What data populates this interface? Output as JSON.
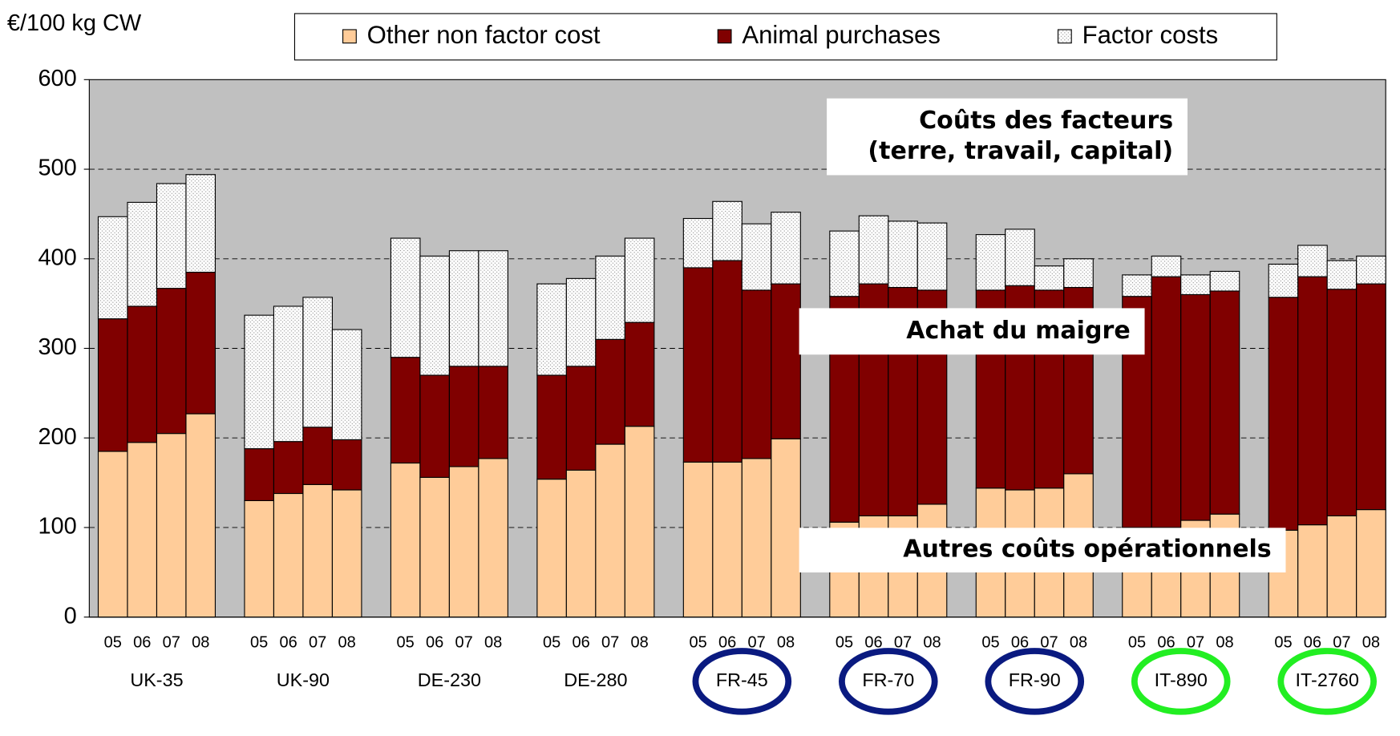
{
  "chart_data": {
    "type": "stacked_bar",
    "y_label": "€/100 kg CW",
    "groups": [
      "UK-35",
      "UK-90",
      "DE-230",
      "DE-280",
      "FR-45",
      "FR-70",
      "FR-90",
      "IT-890",
      "IT-2760"
    ],
    "categories": [
      "05",
      "06",
      "07",
      "08",
      "05",
      "06",
      "07",
      "08",
      "05",
      "06",
      "07",
      "08",
      "05",
      "06",
      "07",
      "08",
      "05",
      "06",
      "07",
      "08",
      "05",
      "06",
      "07",
      "08",
      "05",
      "06",
      "07",
      "08",
      "05",
      "06",
      "07",
      "08",
      "05",
      "06",
      "07",
      "08"
    ],
    "series": [
      {
        "name": "Other non factor cost",
        "color": "#ffcc99",
        "values": [
          185,
          195,
          205,
          227,
          130,
          138,
          148,
          142,
          172,
          156,
          168,
          177,
          154,
          164,
          193,
          213,
          173,
          173,
          177,
          199,
          106,
          113,
          113,
          126,
          144,
          142,
          144,
          160,
          100,
          100,
          108,
          115,
          97,
          103,
          113,
          120
        ]
      },
      {
        "name": "Animal purchases",
        "color": "#800000",
        "values": [
          148,
          152,
          162,
          158,
          58,
          58,
          64,
          56,
          118,
          114,
          112,
          103,
          116,
          116,
          117,
          116,
          217,
          225,
          188,
          173,
          252,
          259,
          255,
          239,
          221,
          228,
          221,
          208,
          258,
          280,
          252,
          249,
          260,
          277,
          253,
          252
        ]
      },
      {
        "name": "Factor costs",
        "color": "#e8e8e8",
        "values": [
          114,
          116,
          117,
          109,
          149,
          151,
          145,
          123,
          133,
          133,
          129,
          129,
          102,
          98,
          93,
          94,
          55,
          66,
          74,
          80,
          73,
          76,
          74,
          75,
          62,
          63,
          27,
          32,
          24,
          23,
          22,
          22,
          37,
          35,
          32,
          31
        ]
      }
    ],
    "ylim": [
      0,
      600
    ],
    "yticks": [
      0,
      100,
      200,
      300,
      400,
      500,
      600
    ],
    "grid": true,
    "annotations": [
      [
        "Coûts des facteurs",
        "(terre, travail, capital)"
      ],
      [
        "Achat du maigre"
      ],
      [
        "Autres coûts opérationnels"
      ]
    ]
  }
}
